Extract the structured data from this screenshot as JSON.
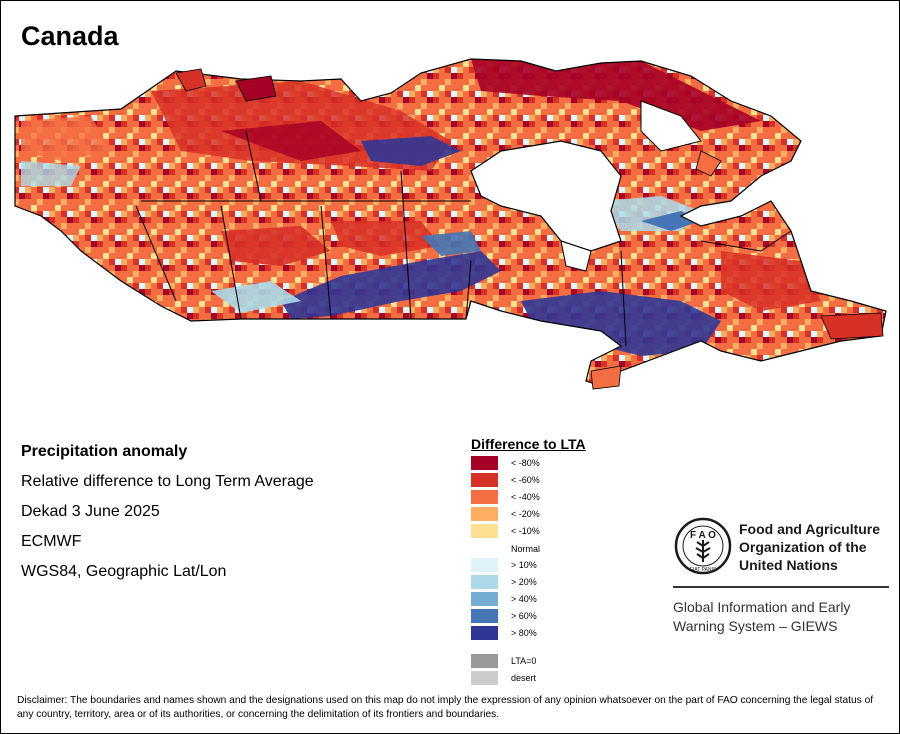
{
  "title": "Canada",
  "info": {
    "heading": "Precipitation anomaly",
    "subtitle": "Relative difference to Long Term Average",
    "period": "Dekad 3 June 2025",
    "source": "ECMWF",
    "projection": "WGS84, Geographic Lat/Lon"
  },
  "legend": {
    "title": "Difference to LTA",
    "dry": [
      {
        "label": "< -80%",
        "color": "#a50026"
      },
      {
        "label": "< -60%",
        "color": "#d73027"
      },
      {
        "label": "< -40%",
        "color": "#f46d43"
      },
      {
        "label": "< -20%",
        "color": "#fdae61"
      },
      {
        "label": "< -10%",
        "color": "#fee090"
      }
    ],
    "normal": "Normal",
    "wet": [
      {
        "label": "> 10%",
        "color": "#e0f3f8"
      },
      {
        "label": "> 20%",
        "color": "#abd9e9"
      },
      {
        "label": "> 40%",
        "color": "#74add1"
      },
      {
        "label": "> 60%",
        "color": "#4575b4"
      },
      {
        "label": "> 80%",
        "color": "#313695"
      }
    ],
    "other": [
      {
        "label": "LTA=0",
        "color": "#999999"
      },
      {
        "label": "desert",
        "color": "#cccccc"
      }
    ]
  },
  "fao": {
    "name_line1": "Food and Agriculture",
    "name_line2": "Organization of the",
    "name_line3": "United Nations",
    "giews_line1": "Global Information and Early",
    "giews_line2": "Warning System – GIEWS",
    "emblem_text": "FAO",
    "emblem_motto": "FIAT PANIS"
  },
  "disclaimer": "Disclaimer: The boundaries and names shown and the designations used on this map do not imply the expression of any opinion whatsoever on the part of FAO concerning the legal status of any country, territory, area or of its authorities, or concerning the delimitation of its frontiers and boundaries."
}
